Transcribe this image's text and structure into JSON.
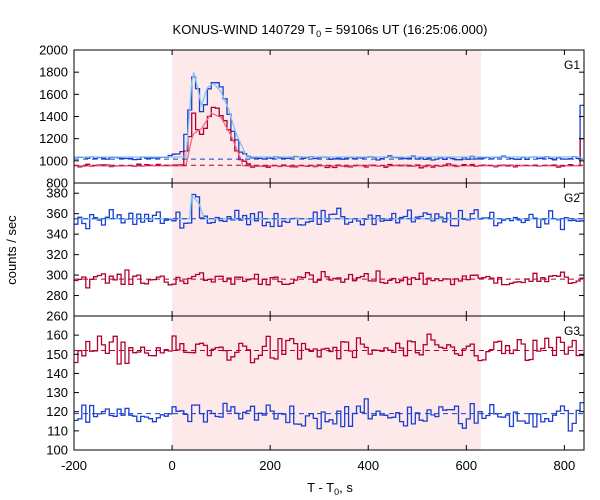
{
  "chart_data": {
    "type": "line",
    "title_prefix": "KONUS-WIND 140729 T",
    "title_sub": "0",
    "title_suffix": " = 59106s UT (16:25:06.000)",
    "xlabel_prefix": "T - T",
    "xlabel_sub": "0",
    "xlabel_suffix": ", s",
    "ylabel": "counts / sec",
    "xlim": [
      -200,
      840
    ],
    "x_ticks": [
      -200,
      0,
      200,
      400,
      600,
      800
    ],
    "shaded_interval": [
      0,
      630
    ],
    "colors": {
      "blue_series": "#1a3fd0",
      "red_series": "#b3002d",
      "fit_light": "#7ec8f0",
      "fit_pink": "#f06a8c",
      "shade": "#fde8ea"
    },
    "panels": [
      {
        "name": "G1",
        "ylim": [
          800,
          2000
        ],
        "y_ticks": [
          800,
          1000,
          1200,
          1400,
          1600,
          1800,
          2000
        ],
        "series": [
          {
            "color_key": "blue_series",
            "base": 1025,
            "noise": 12,
            "peaks": [
              [
                -10,
                1035
              ],
              [
                20,
                1080
              ],
              [
                35,
                1400
              ],
              [
                45,
                1800
              ],
              [
                52,
                1650
              ],
              [
                62,
                1380
              ],
              [
                72,
                1600
              ],
              [
                82,
                1720
              ],
              [
                92,
                1700
              ],
              [
                102,
                1650
              ],
              [
                112,
                1500
              ],
              [
                125,
                1270
              ],
              [
                140,
                1080
              ],
              [
                160,
                1030
              ]
            ],
            "end_spike": [
              [
                830,
                1100
              ],
              [
                836,
                1500
              ],
              [
                840,
                1820
              ]
            ]
          },
          {
            "color_key": "red_series",
            "base": 955,
            "noise": 10,
            "peaks": [
              [
                20,
                965
              ],
              [
                35,
                1200
              ],
              [
                45,
                1460
              ],
              [
                55,
                1200
              ],
              [
                65,
                1260
              ],
              [
                75,
                1390
              ],
              [
                85,
                1480
              ],
              [
                95,
                1460
              ],
              [
                105,
                1390
              ],
              [
                115,
                1290
              ],
              [
                125,
                1170
              ],
              [
                140,
                1000
              ],
              [
                160,
                960
              ]
            ],
            "end_spike": [
              [
                832,
                1100
              ],
              [
                840,
                1300
              ]
            ]
          }
        ],
        "fits": [
          {
            "color_key": "fit_light",
            "base": 1035,
            "peaks": [
              [
                30,
                1100
              ],
              [
                42,
                1830
              ],
              [
                50,
                1700
              ],
              [
                60,
                1500
              ],
              [
                72,
                1660
              ],
              [
                85,
                1700
              ],
              [
                100,
                1620
              ],
              [
                115,
                1470
              ],
              [
                130,
                1250
              ],
              [
                150,
                1060
              ]
            ]
          },
          {
            "color_key": "fit_pink",
            "base": 955,
            "peaks": [
              [
                30,
                990
              ],
              [
                42,
                1240
              ],
              [
                60,
                1290
              ],
              [
                80,
                1430
              ],
              [
                100,
                1390
              ],
              [
                120,
                1230
              ],
              [
                140,
                1020
              ]
            ]
          }
        ],
        "backgrounds": [
          {
            "color_key": "blue_series",
            "value": 1015
          },
          {
            "color_key": "red_series",
            "value": 960
          }
        ]
      },
      {
        "name": "G2",
        "ylim": [
          260,
          390
        ],
        "y_ticks": [
          260,
          280,
          300,
          320,
          340,
          360,
          380
        ],
        "series": [
          {
            "color_key": "blue_series",
            "base": 355,
            "noise": 6,
            "peaks": [
              [
                40,
                375
              ],
              [
                50,
                378
              ],
              [
                60,
                360
              ]
            ]
          },
          {
            "color_key": "red_series",
            "base": 296,
            "noise": 5,
            "peaks": []
          }
        ],
        "fits": [
          {
            "color_key": "fit_light",
            "base": 355,
            "peaks": [
              [
                40,
                378
              ],
              [
                55,
                370
              ],
              [
                65,
                356
              ]
            ]
          }
        ],
        "backgrounds": [
          {
            "color_key": "blue_series",
            "value": 355
          },
          {
            "color_key": "red_series",
            "value": 296
          }
        ]
      },
      {
        "name": "G3",
        "ylim": [
          100,
          170
        ],
        "y_ticks": [
          100,
          110,
          120,
          130,
          140,
          150,
          160
        ],
        "series": [
          {
            "color_key": "red_series",
            "base": 152,
            "noise": 5,
            "peaks": [
              [
                265,
                164
              ]
            ]
          },
          {
            "color_key": "blue_series",
            "base": 118,
            "noise": 5,
            "peaks": [
              [
                350,
                130
              ]
            ]
          }
        ],
        "fits": [],
        "backgrounds": [
          {
            "color_key": "red_series",
            "value": 152
          },
          {
            "color_key": "blue_series",
            "value": 119
          }
        ]
      }
    ]
  }
}
